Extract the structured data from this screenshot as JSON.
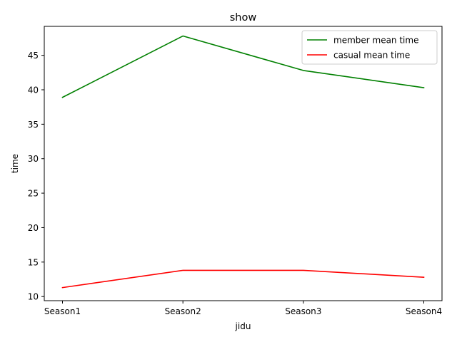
{
  "chart_data": {
    "type": "line",
    "title": "show",
    "xlabel": "jidu",
    "ylabel": "time",
    "categories": [
      "Season1",
      "Season2",
      "Season3",
      "Season4"
    ],
    "yticks": [
      10,
      15,
      20,
      25,
      30,
      35,
      40,
      45
    ],
    "ylim": [
      9.4,
      49.2
    ],
    "grid": false,
    "legend_position": "top-right",
    "series": [
      {
        "name": "member mean time",
        "color": "#008000",
        "values": [
          38.9,
          47.8,
          42.8,
          40.3
        ]
      },
      {
        "name": "casual mean time",
        "color": "#ff0000",
        "values": [
          11.3,
          13.8,
          13.8,
          12.8
        ]
      }
    ]
  }
}
